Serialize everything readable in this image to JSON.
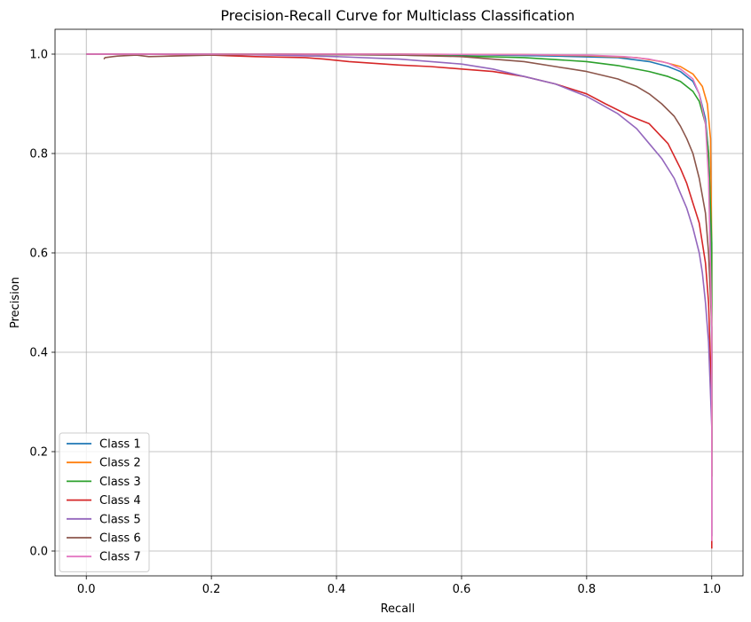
{
  "chart_data": {
    "type": "line",
    "title": "Precision-Recall Curve for Multiclass Classification",
    "xlabel": "Recall",
    "ylabel": "Precision",
    "xlim": [
      -0.05,
      1.05
    ],
    "ylim": [
      -0.05,
      1.05
    ],
    "xticks": [
      "0.0",
      "0.2",
      "0.4",
      "0.6",
      "0.8",
      "1.0"
    ],
    "yticks": [
      "0.0",
      "0.2",
      "0.4",
      "0.6",
      "0.8",
      "1.0"
    ],
    "grid": true,
    "legend_position": "lower-left",
    "series": [
      {
        "name": "Class 1",
        "color": "#1f77b4",
        "x": [
          0.0,
          0.1,
          0.3,
          0.5,
          0.65,
          0.75,
          0.85,
          0.9,
          0.93,
          0.95,
          0.97,
          0.98,
          0.99,
          0.995,
          0.998,
          1.0,
          1.0
        ],
        "y": [
          1.0,
          1.0,
          1.0,
          1.0,
          0.998,
          0.996,
          0.993,
          0.985,
          0.975,
          0.965,
          0.945,
          0.92,
          0.87,
          0.8,
          0.7,
          0.4,
          0.03
        ]
      },
      {
        "name": "Class 2",
        "color": "#ff7f0e",
        "x": [
          0.0,
          0.1,
          0.3,
          0.5,
          0.7,
          0.8,
          0.88,
          0.92,
          0.95,
          0.97,
          0.985,
          0.993,
          0.998,
          1.0,
          1.0
        ],
        "y": [
          1.0,
          1.0,
          1.0,
          1.0,
          0.999,
          0.997,
          0.993,
          0.985,
          0.975,
          0.96,
          0.935,
          0.9,
          0.83,
          0.6,
          0.15
        ]
      },
      {
        "name": "Class 3",
        "color": "#2ca02c",
        "x": [
          0.0,
          0.1,
          0.3,
          0.5,
          0.6,
          0.7,
          0.8,
          0.85,
          0.9,
          0.93,
          0.95,
          0.97,
          0.98,
          0.99,
          0.995,
          1.0,
          1.0
        ],
        "y": [
          1.0,
          1.0,
          1.0,
          0.998,
          0.996,
          0.993,
          0.985,
          0.977,
          0.965,
          0.955,
          0.945,
          0.925,
          0.905,
          0.86,
          0.8,
          0.62,
          0.15
        ]
      },
      {
        "name": "Class 4",
        "color": "#d62728",
        "x": [
          0.0,
          0.1,
          0.2,
          0.27,
          0.35,
          0.38,
          0.42,
          0.5,
          0.55,
          0.6,
          0.65,
          0.7,
          0.75,
          0.8,
          0.83,
          0.87,
          0.9,
          0.93,
          0.95,
          0.96,
          0.97,
          0.975,
          0.98,
          0.985,
          0.99,
          0.995,
          1.0,
          1.0
        ],
        "y": [
          1.0,
          1.0,
          0.998,
          0.995,
          0.993,
          0.99,
          0.985,
          0.978,
          0.975,
          0.97,
          0.965,
          0.955,
          0.94,
          0.92,
          0.9,
          0.875,
          0.86,
          0.82,
          0.77,
          0.74,
          0.7,
          0.68,
          0.66,
          0.62,
          0.58,
          0.5,
          0.3,
          0.005
        ]
      },
      {
        "name": "Class 5",
        "color": "#9467bd",
        "x": [
          0.0,
          0.1,
          0.2,
          0.3,
          0.4,
          0.5,
          0.6,
          0.65,
          0.7,
          0.75,
          0.8,
          0.85,
          0.88,
          0.9,
          0.92,
          0.94,
          0.95,
          0.96,
          0.97,
          0.98,
          0.985,
          0.99,
          0.995,
          1.0,
          1.0
        ],
        "y": [
          1.0,
          1.0,
          1.0,
          0.998,
          0.995,
          0.99,
          0.98,
          0.97,
          0.955,
          0.94,
          0.915,
          0.88,
          0.85,
          0.82,
          0.79,
          0.75,
          0.72,
          0.69,
          0.65,
          0.6,
          0.56,
          0.5,
          0.42,
          0.25,
          0.03
        ]
      },
      {
        "name": "Class 6",
        "color": "#8c564b",
        "x": [
          0.028,
          0.03,
          0.05,
          0.08,
          0.1,
          0.2,
          0.3,
          0.4,
          0.5,
          0.6,
          0.7,
          0.75,
          0.8,
          0.85,
          0.88,
          0.9,
          0.92,
          0.94,
          0.95,
          0.96,
          0.97,
          0.98,
          0.99,
          0.995,
          1.0,
          1.0
        ],
        "y": [
          0.99,
          0.993,
          0.996,
          0.998,
          0.995,
          0.998,
          1.0,
          0.999,
          0.998,
          0.995,
          0.985,
          0.975,
          0.965,
          0.95,
          0.935,
          0.92,
          0.9,
          0.875,
          0.855,
          0.83,
          0.8,
          0.75,
          0.68,
          0.6,
          0.45,
          0.2
        ]
      },
      {
        "name": "Class 7",
        "color": "#e377c2",
        "x": [
          0.0,
          0.1,
          0.3,
          0.5,
          0.7,
          0.8,
          0.86,
          0.9,
          0.93,
          0.95,
          0.97,
          0.98,
          0.99,
          0.995,
          1.0,
          1.0
        ],
        "y": [
          1.0,
          1.0,
          1.0,
          1.0,
          0.999,
          0.998,
          0.995,
          0.99,
          0.982,
          0.97,
          0.95,
          0.92,
          0.86,
          0.75,
          0.45,
          0.02
        ]
      }
    ]
  }
}
